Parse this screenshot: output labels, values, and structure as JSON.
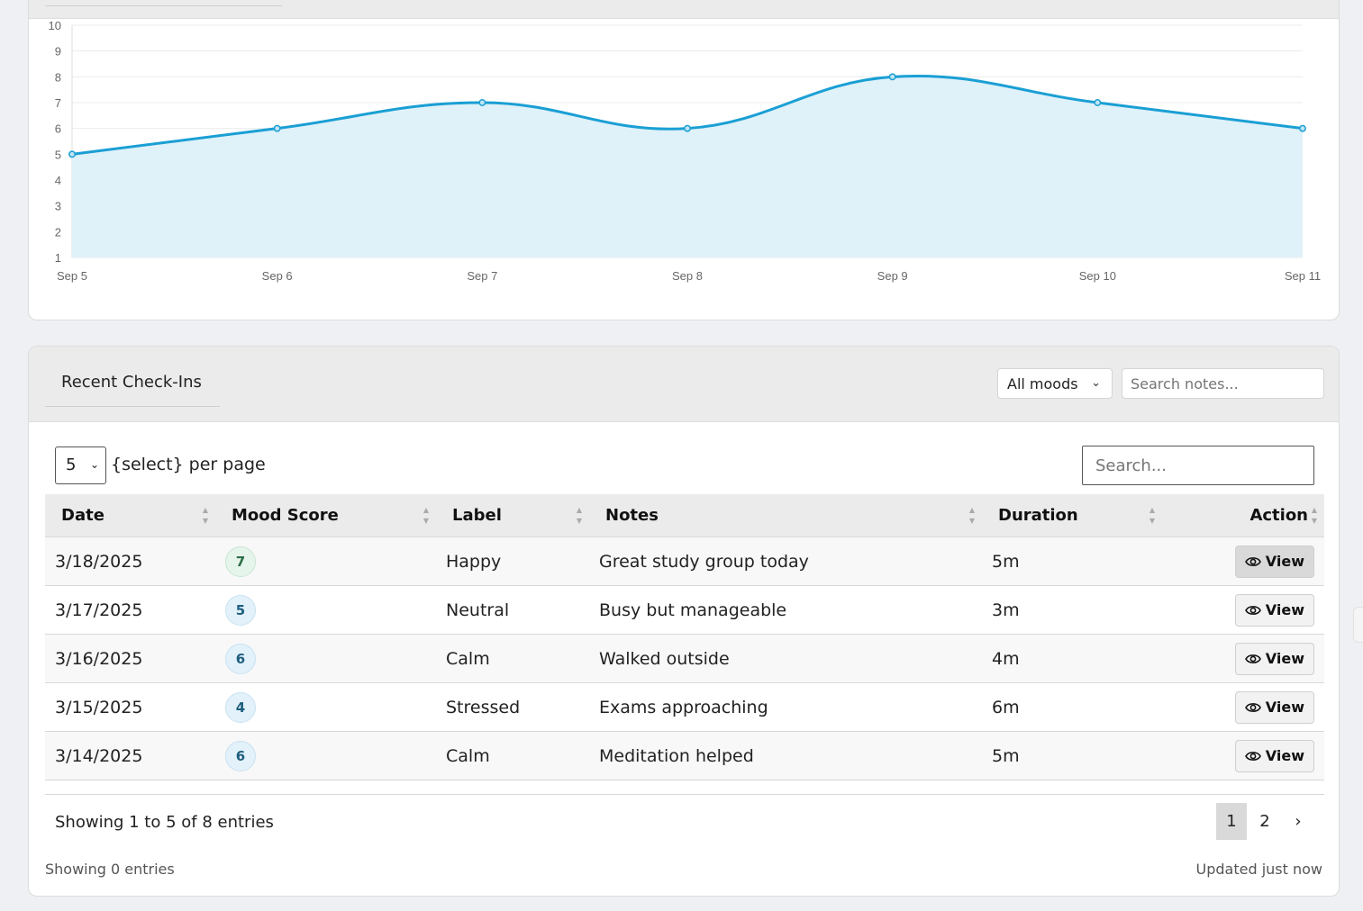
{
  "chart_data": {
    "type": "area",
    "categories": [
      "Sep 5",
      "Sep 6",
      "Sep 7",
      "Sep 8",
      "Sep 9",
      "Sep 10",
      "Sep 11"
    ],
    "series": [
      {
        "values": [
          5,
          6,
          7,
          6,
          8,
          7,
          6
        ]
      }
    ],
    "yticks": [
      1,
      2,
      3,
      4,
      5,
      6,
      7,
      8,
      9,
      10
    ],
    "ylim": [
      1,
      10
    ],
    "grid": true,
    "colors": {
      "line": "#1a9fd4",
      "fill": "#dff1f9"
    }
  },
  "recent": {
    "title": "Recent Check-Ins",
    "mood_filter": "All moods",
    "notes_search_placeholder": "Search notes..."
  },
  "datatable": {
    "per_page_value": "5",
    "per_page_label": "{select} per page",
    "search_placeholder": "Search...",
    "columns": [
      "Date",
      "Mood Score",
      "Label",
      "Notes",
      "Duration",
      "Action"
    ],
    "rows": [
      {
        "date": "3/18/2025",
        "score": "7",
        "label": "Happy",
        "notes": "Great study group today",
        "duration": "5m",
        "action": "View"
      },
      {
        "date": "3/17/2025",
        "score": "5",
        "label": "Neutral",
        "notes": "Busy but manageable",
        "duration": "3m",
        "action": "View"
      },
      {
        "date": "3/16/2025",
        "score": "6",
        "label": "Calm",
        "notes": "Walked outside",
        "duration": "4m",
        "action": "View"
      },
      {
        "date": "3/15/2025",
        "score": "4",
        "label": "Stressed",
        "notes": "Exams approaching",
        "duration": "6m",
        "action": "View"
      },
      {
        "date": "3/14/2025",
        "score": "6",
        "label": "Calm",
        "notes": "Meditation helped",
        "duration": "5m",
        "action": "View"
      }
    ],
    "info": "Showing 1 to 5 of 8 entries",
    "pages": [
      "1",
      "2",
      "›"
    ]
  },
  "footer": {
    "left": "Showing 0 entries",
    "right": "Updated just now"
  }
}
